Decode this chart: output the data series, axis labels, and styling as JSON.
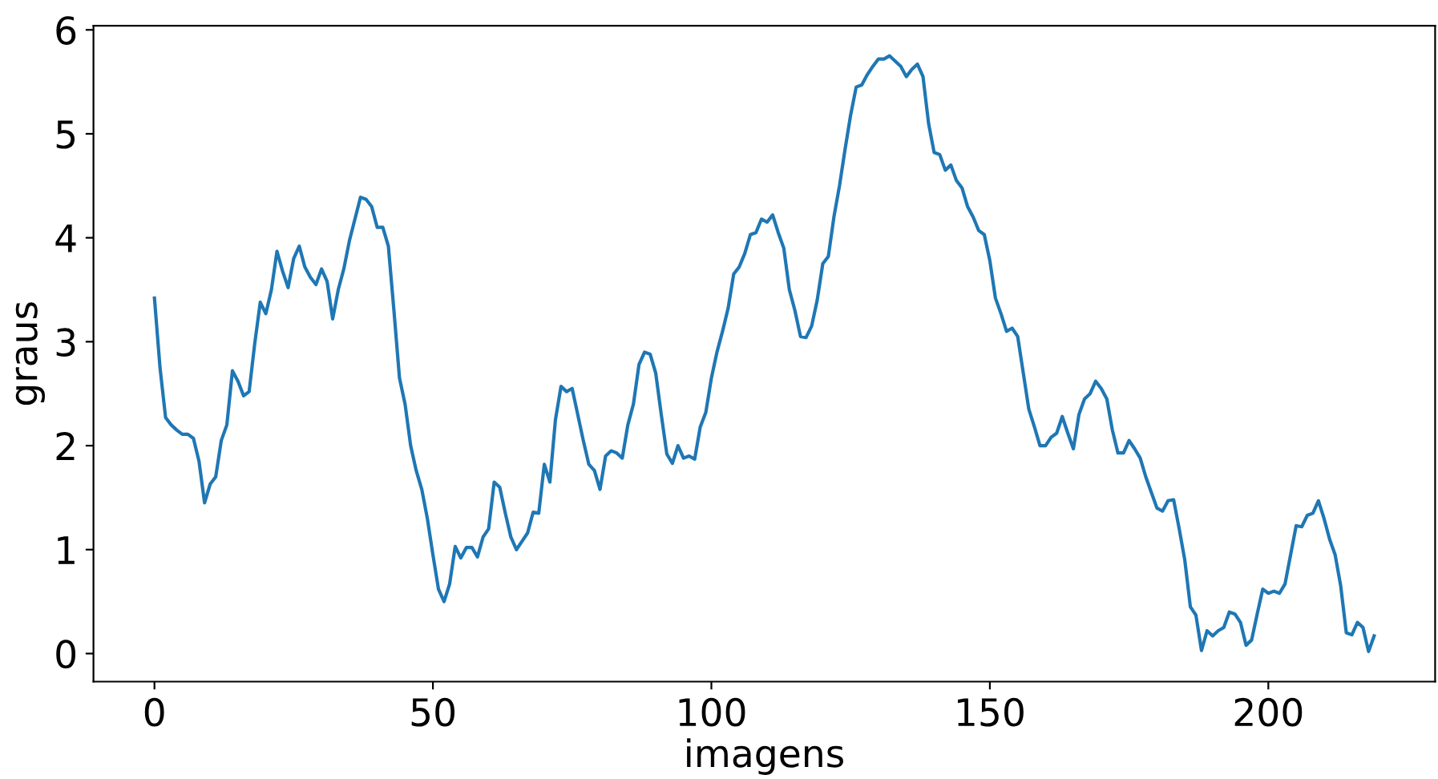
{
  "chart_data": {
    "type": "line",
    "xlabel": "imagens",
    "ylabel": "graus",
    "x": [
      0,
      1,
      2,
      3,
      4,
      5,
      6,
      7,
      8,
      9,
      10,
      11,
      12,
      13,
      14,
      15,
      16,
      17,
      18,
      19,
      20,
      21,
      22,
      23,
      24,
      25,
      26,
      27,
      28,
      29,
      30,
      31,
      32,
      33,
      34,
      35,
      36,
      37,
      38,
      39,
      40,
      41,
      42,
      43,
      44,
      45,
      46,
      47,
      48,
      49,
      50,
      51,
      52,
      53,
      54,
      55,
      56,
      57,
      58,
      59,
      60,
      61,
      62,
      63,
      64,
      65,
      66,
      67,
      68,
      69,
      70,
      71,
      72,
      73,
      74,
      75,
      76,
      77,
      78,
      79,
      80,
      81,
      82,
      83,
      84,
      85,
      86,
      87,
      88,
      89,
      90,
      91,
      92,
      93,
      94,
      95,
      96,
      97,
      98,
      99,
      100,
      101,
      102,
      103,
      104,
      105,
      106,
      107,
      108,
      109,
      110,
      111,
      112,
      113,
      114,
      115,
      116,
      117,
      118,
      119,
      120,
      121,
      122,
      123,
      124,
      125,
      126,
      127,
      128,
      129,
      130,
      131,
      132,
      133,
      134,
      135,
      136,
      137,
      138,
      139,
      140,
      141,
      142,
      143,
      144,
      145,
      146,
      147,
      148,
      149,
      150,
      151,
      152,
      153,
      154,
      155,
      156,
      157,
      158,
      159,
      160,
      161,
      162,
      163,
      164,
      165,
      166,
      167,
      168,
      169,
      170,
      171,
      172,
      173,
      174,
      175,
      176,
      177,
      178,
      179,
      180,
      181,
      182,
      183,
      184,
      185,
      186,
      187,
      188,
      189,
      190,
      191,
      192,
      193,
      194,
      195,
      196,
      197,
      198,
      199,
      200,
      201,
      202,
      203,
      204,
      205,
      206,
      207,
      208,
      209,
      210,
      211,
      212,
      213,
      214,
      215,
      216,
      217,
      218,
      219
    ],
    "series": [
      {
        "color": "#1f77b4",
        "values": [
          3.42,
          2.75,
          2.27,
          2.2,
          2.15,
          2.11,
          2.11,
          2.07,
          1.85,
          1.45,
          1.63,
          1.7,
          2.05,
          2.2,
          2.72,
          2.62,
          2.48,
          2.52,
          2.98,
          3.38,
          3.27,
          3.5,
          3.87,
          3.68,
          3.52,
          3.8,
          3.92,
          3.72,
          3.62,
          3.55,
          3.7,
          3.58,
          3.22,
          3.5,
          3.7,
          3.97,
          4.18,
          4.39,
          4.37,
          4.3,
          4.1,
          4.1,
          3.92,
          3.3,
          2.65,
          2.4,
          2.0,
          1.76,
          1.58,
          1.3,
          0.95,
          0.62,
          0.5,
          0.67,
          1.03,
          0.92,
          1.02,
          1.02,
          0.93,
          1.12,
          1.2,
          1.65,
          1.6,
          1.35,
          1.12,
          1.0,
          1.08,
          1.16,
          1.36,
          1.35,
          1.82,
          1.65,
          2.25,
          2.57,
          2.52,
          2.55,
          2.3,
          2.05,
          1.82,
          1.76,
          1.58,
          1.9,
          1.95,
          1.93,
          1.88,
          2.2,
          2.4,
          2.78,
          2.9,
          2.88,
          2.7,
          2.3,
          1.92,
          1.83,
          2.0,
          1.88,
          1.9,
          1.87,
          2.18,
          2.32,
          2.65,
          2.9,
          3.1,
          3.32,
          3.65,
          3.72,
          3.85,
          4.03,
          4.05,
          4.18,
          4.15,
          4.22,
          4.05,
          3.9,
          3.5,
          3.3,
          3.05,
          3.04,
          3.15,
          3.4,
          3.75,
          3.82,
          4.2,
          4.5,
          4.85,
          5.18,
          5.45,
          5.47,
          5.57,
          5.65,
          5.72,
          5.72,
          5.75,
          5.7,
          5.65,
          5.55,
          5.62,
          5.67,
          5.55,
          5.1,
          4.82,
          4.8,
          4.65,
          4.7,
          4.55,
          4.48,
          4.3,
          4.2,
          4.07,
          4.03,
          3.78,
          3.42,
          3.27,
          3.1,
          3.13,
          3.05,
          2.7,
          2.35,
          2.18,
          2.0,
          2.0,
          2.08,
          2.12,
          2.28,
          2.12,
          1.97,
          2.3,
          2.45,
          2.5,
          2.62,
          2.55,
          2.45,
          2.15,
          1.93,
          1.93,
          2.05,
          1.97,
          1.88,
          1.7,
          1.55,
          1.4,
          1.37,
          1.47,
          1.48,
          1.2,
          0.9,
          0.45,
          0.37,
          0.03,
          0.22,
          0.17,
          0.22,
          0.25,
          0.4,
          0.38,
          0.3,
          0.08,
          0.13,
          0.38,
          0.62,
          0.58,
          0.6,
          0.58,
          0.67,
          0.95,
          1.23,
          1.22,
          1.33,
          1.35,
          1.47,
          1.3,
          1.1,
          0.95,
          0.65,
          0.2,
          0.18,
          0.3,
          0.25,
          0.02,
          0.17
        ]
      }
    ],
    "xlim": [
      -10.95,
      229.95
    ],
    "ylim": [
      -0.27,
      6.04
    ],
    "xticks": [
      0,
      50,
      100,
      150,
      200
    ],
    "yticks": [
      0,
      1,
      2,
      3,
      4,
      5,
      6
    ]
  }
}
